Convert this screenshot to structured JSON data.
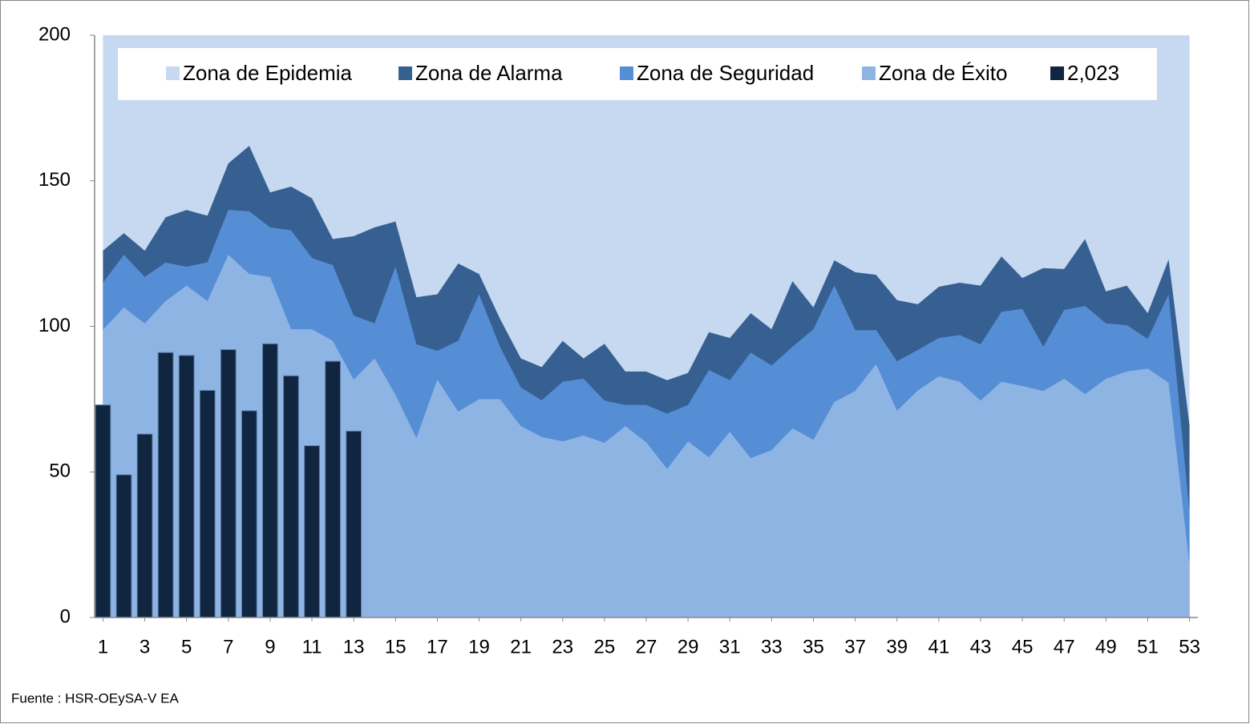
{
  "chart_data": {
    "type": "area",
    "x": [
      1,
      2,
      3,
      4,
      5,
      6,
      7,
      8,
      9,
      10,
      11,
      12,
      13,
      14,
      15,
      16,
      17,
      18,
      19,
      20,
      21,
      22,
      23,
      24,
      25,
      26,
      27,
      28,
      29,
      30,
      31,
      32,
      33,
      34,
      35,
      36,
      37,
      38,
      39,
      40,
      41,
      42,
      43,
      44,
      45,
      46,
      47,
      48,
      49,
      50,
      51,
      52,
      53
    ],
    "xlim": [
      0.6,
      53.4
    ],
    "xticks": [
      1,
      3,
      5,
      7,
      9,
      11,
      13,
      15,
      17,
      19,
      21,
      23,
      25,
      27,
      29,
      31,
      33,
      35,
      37,
      39,
      41,
      43,
      45,
      47,
      49,
      51,
      53
    ],
    "ylim": [
      0,
      200
    ],
    "yticks": [
      0,
      50,
      100,
      150,
      200
    ],
    "series": [
      {
        "name": "Zona de Epidemia",
        "type": "area",
        "color": "#c6d9f1",
        "values": [
          200,
          200,
          200,
          200,
          200,
          200,
          200,
          200,
          200,
          200,
          200,
          200,
          200,
          200,
          200,
          200,
          200,
          200,
          200,
          200,
          200,
          200,
          200,
          200,
          200,
          200,
          200,
          200,
          200,
          200,
          200,
          200,
          200,
          200,
          200,
          200,
          200,
          200,
          200,
          200,
          200,
          200,
          200,
          200,
          200,
          200,
          200,
          200,
          200,
          200,
          200,
          200,
          200
        ]
      },
      {
        "name": "Zona de Alarma",
        "type": "area",
        "color": "#376092",
        "values": [
          126,
          132,
          126,
          137.5,
          140,
          138,
          156,
          162,
          146,
          148,
          144,
          130,
          131,
          134,
          136,
          110,
          111,
          121.6,
          118,
          102.6,
          89,
          86,
          95,
          89,
          94,
          84.5,
          84.5,
          81.5,
          84,
          98,
          96,
          104.5,
          99,
          115.5,
          106.5,
          122.7,
          118.6,
          117.7,
          109,
          107.6,
          113.6,
          115,
          114,
          124,
          116.6,
          120,
          119.7,
          130,
          112,
          114,
          104.5,
          123,
          66
        ]
      },
      {
        "name": "Zona de Seguridad",
        "type": "area",
        "color": "#558ed5",
        "values": [
          115,
          124.6,
          117,
          121.9,
          120.5,
          122,
          140,
          139.5,
          134,
          133,
          123.5,
          121,
          103.7,
          101,
          120.5,
          93.8,
          91.6,
          95,
          111,
          93,
          79,
          74.6,
          81,
          82,
          74.5,
          73,
          73,
          70,
          73,
          85,
          81.5,
          91,
          86.6,
          93,
          99,
          114,
          98.7,
          98.7,
          88,
          91.9,
          96,
          97,
          93.8,
          105,
          106,
          93,
          105.6,
          107,
          101,
          100.4,
          95.7,
          111,
          36
        ]
      },
      {
        "name": "Zona de Éxito",
        "type": "area",
        "color": "#8eb4e3",
        "values": [
          98.8,
          106.5,
          101,
          108.7,
          114,
          108.7,
          124.6,
          118,
          117,
          99,
          99,
          95,
          81.7,
          89,
          76.5,
          61.6,
          81.7,
          70.7,
          75,
          75,
          65.7,
          62,
          60.5,
          62.5,
          60,
          65.7,
          60.2,
          51,
          60.5,
          55,
          63.8,
          54.7,
          57.5,
          65,
          61,
          74,
          77.8,
          87,
          71,
          78,
          82.8,
          81,
          74.5,
          81,
          79.5,
          77.8,
          82,
          76.7,
          82,
          84.5,
          85.5,
          80.6,
          18
        ]
      },
      {
        "name": "2,023",
        "type": "bar",
        "color": "#10253f",
        "values": [
          73,
          49,
          63,
          91,
          90,
          78,
          92,
          71,
          94,
          83,
          59,
          88,
          64,
          null,
          null,
          null,
          null,
          null,
          null,
          null,
          null,
          null,
          null,
          null,
          null,
          null,
          null,
          null,
          null,
          null,
          null,
          null,
          null,
          null,
          null,
          null,
          null,
          null,
          null,
          null,
          null,
          null,
          null,
          null,
          null,
          null,
          null,
          null,
          null,
          null,
          null,
          null,
          null
        ]
      }
    ],
    "source": "Fuente : HSR-OEySA-V EA"
  }
}
